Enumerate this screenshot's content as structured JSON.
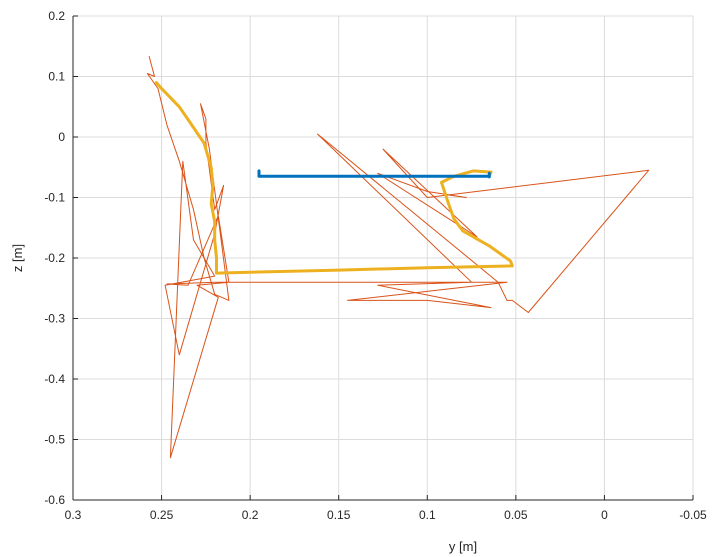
{
  "chart_data": {
    "type": "line",
    "title": "",
    "xlabel": "y [m]",
    "ylabel": "z [m]",
    "xlim": [
      0.3,
      -0.05
    ],
    "ylim": [
      -0.6,
      0.2
    ],
    "x_reversed": true,
    "grid": true,
    "legend": "none",
    "x_ticks": [
      0.3,
      0.25,
      0.2,
      0.15,
      0.1,
      0.05,
      0,
      -0.05
    ],
    "x_tick_labels": [
      "0.3",
      "0.25",
      "0.2",
      "0.15",
      "0.1",
      "0.05",
      "0",
      "-0.05"
    ],
    "y_ticks": [
      0.2,
      0.1,
      0,
      -0.1,
      -0.2,
      -0.3,
      -0.4,
      -0.5,
      -0.6
    ],
    "y_tick_labels": [
      "0.2",
      "0.1",
      "0",
      "-0.1",
      "-0.2",
      "-0.3",
      "-0.4",
      "-0.5",
      "-0.6"
    ],
    "series": [
      {
        "color": "#0072bd",
        "width": 3,
        "x": [
          0.195,
          0.195,
          0.065,
          0.065,
          0.065
        ],
        "y": [
          -0.056,
          -0.065,
          -0.065,
          -0.06,
          -0.066
        ]
      },
      {
        "color": "#edb120",
        "width": 3,
        "x": [
          0.253,
          0.25,
          0.24,
          0.233,
          0.226,
          0.224,
          0.222,
          0.221,
          0.222,
          0.22,
          0.22,
          0.219,
          0.219,
          0.15,
          0.1,
          0.052,
          0.053,
          0.065,
          0.08,
          0.085,
          0.088,
          0.092,
          0.085,
          0.074,
          0.064,
          0.065
        ],
        "y": [
          0.09,
          0.08,
          0.05,
          0.02,
          -0.01,
          -0.03,
          -0.05,
          -0.08,
          -0.11,
          -0.14,
          -0.17,
          -0.2,
          -0.225,
          -0.22,
          -0.216,
          -0.213,
          -0.205,
          -0.18,
          -0.155,
          -0.135,
          -0.11,
          -0.075,
          -0.065,
          -0.056,
          -0.058,
          -0.064
        ]
      },
      {
        "color": "#d95319",
        "width": 1,
        "x": [
          0.257,
          0.254,
          0.258,
          0.252,
          0.247,
          0.24,
          0.232,
          0.226,
          0.22,
          0.212,
          0.223,
          0.228,
          0.225,
          0.225,
          0.22,
          0.215,
          0.22,
          0.24,
          0.248,
          0.22,
          0.232,
          0.238,
          0.245,
          0.218,
          0.23,
          0.212,
          0.218,
          0.235,
          0.247,
          0.22,
          0.055,
          0.145,
          0.1,
          0.064,
          0.128,
          0.075,
          0.162,
          0.06,
          0.055,
          0.052,
          0.043,
          -0.025,
          0.1,
          0.125,
          0.072,
          0.128,
          0.1,
          0.078,
          0.09
        ],
        "y": [
          0.133,
          0.1,
          0.105,
          0.08,
          0.02,
          -0.04,
          -0.12,
          -0.2,
          -0.26,
          -0.27,
          -0.02,
          0.055,
          0.03,
          -0.01,
          -0.12,
          -0.08,
          -0.16,
          -0.36,
          -0.245,
          -0.23,
          -0.17,
          -0.04,
          -0.53,
          -0.265,
          -0.245,
          -0.24,
          -0.13,
          -0.245,
          -0.243,
          -0.24,
          -0.24,
          -0.27,
          -0.27,
          -0.282,
          -0.245,
          -0.24,
          0.005,
          -0.24,
          -0.27,
          -0.27,
          -0.29,
          -0.055,
          -0.1,
          -0.02,
          -0.165,
          -0.06,
          -0.09,
          -0.1,
          -0.095
        ]
      }
    ]
  }
}
